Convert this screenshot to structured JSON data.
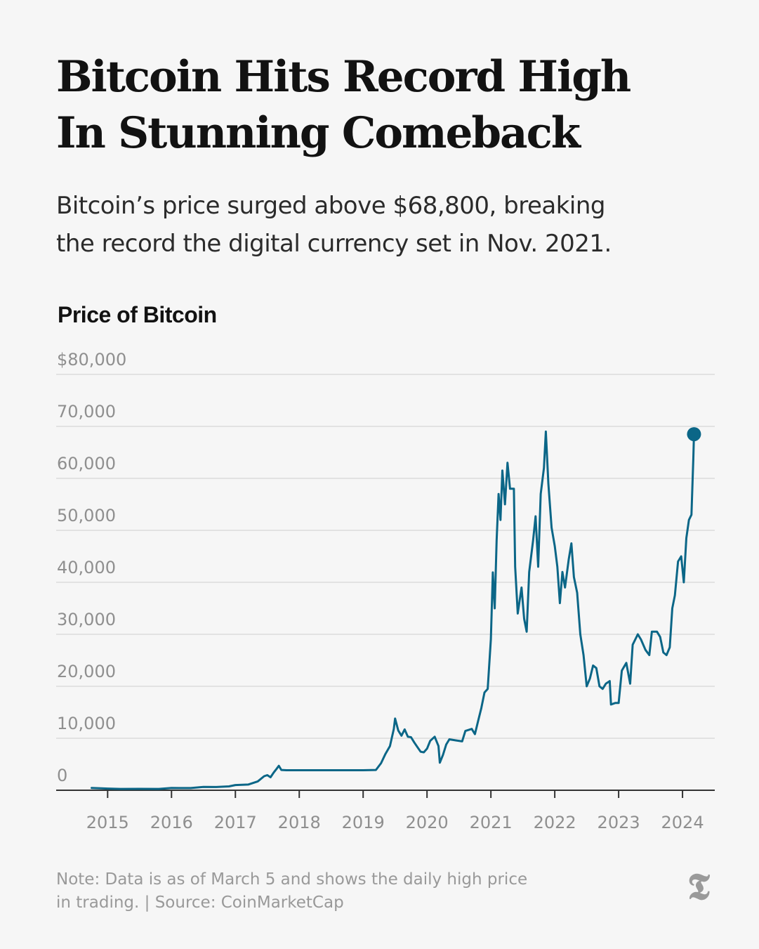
{
  "header": {
    "headline_line1": "Bitcoin Hits Record High",
    "headline_line2": "In Stunning Comeback",
    "dek_line1": "Bitcoin’s price surged above $68,800, breaking",
    "dek_line2": "the record the digital currency set in Nov. 2021."
  },
  "footer": {
    "note_line1": "Note: Data is as of March 5 and shows the daily high price",
    "note_line2": "in trading. | Source: CoinMarketCap",
    "logo": "𝕿"
  },
  "colors": {
    "line": "#0b6687",
    "grid": "#dcdcdc",
    "axis": "#333333",
    "tick_text": "#8f8f8f",
    "background": "#f6f6f6"
  },
  "chart_data": {
    "type": "line",
    "title": "Price of Bitcoin",
    "y_tick_labels": [
      "0",
      "10,000",
      "20,000",
      "30,000",
      "40,000",
      "50,000",
      "60,000",
      "70,000",
      "$80,000"
    ],
    "y_ticks": [
      0,
      10000,
      20000,
      30000,
      40000,
      50000,
      60000,
      70000,
      80000
    ],
    "ylim": [
      0,
      80000
    ],
    "x_tick_labels": [
      "2015",
      "2016",
      "2017",
      "2018",
      "2019",
      "2020",
      "2021",
      "2022",
      "2023",
      "2024"
    ],
    "x_ticks": [
      2015,
      2016,
      2017,
      2018,
      2019,
      2020,
      2021,
      2022,
      2023,
      2024
    ],
    "xlim": [
      2014.7,
      2024.34
    ],
    "grid": "horizontal",
    "series": [
      {
        "color": "#0b6687",
        "end_marker": true,
        "points": [
          [
            2014.75,
            450
          ],
          [
            2014.9,
            380
          ],
          [
            2015.0,
            320
          ],
          [
            2015.2,
            260
          ],
          [
            2015.5,
            270
          ],
          [
            2015.8,
            250
          ],
          [
            2016.0,
            430
          ],
          [
            2016.3,
            420
          ],
          [
            2016.5,
            650
          ],
          [
            2016.7,
            620
          ],
          [
            2016.9,
            740
          ],
          [
            2017.0,
            1000
          ],
          [
            2017.2,
            1100
          ],
          [
            2017.35,
            1700
          ],
          [
            2017.45,
            2700
          ],
          [
            2017.5,
            2900
          ],
          [
            2017.55,
            2500
          ],
          [
            2017.6,
            3400
          ],
          [
            2017.65,
            4200
          ],
          [
            2017.68,
            4700
          ],
          [
            2017.72,
            3900
          ],
          [
            2017.8,
            3850
          ],
          [
            2018.0,
            3850
          ],
          [
            2018.5,
            3850
          ],
          [
            2019.0,
            3850
          ],
          [
            2019.2,
            3900
          ],
          [
            2019.28,
            5200
          ],
          [
            2019.35,
            7000
          ],
          [
            2019.42,
            8500
          ],
          [
            2019.48,
            11800
          ],
          [
            2019.5,
            13800
          ],
          [
            2019.55,
            11500
          ],
          [
            2019.6,
            10500
          ],
          [
            2019.65,
            11700
          ],
          [
            2019.7,
            10300
          ],
          [
            2019.75,
            10200
          ],
          [
            2019.8,
            9200
          ],
          [
            2019.85,
            8300
          ],
          [
            2019.9,
            7400
          ],
          [
            2019.95,
            7300
          ],
          [
            2020.0,
            8000
          ],
          [
            2020.05,
            9500
          ],
          [
            2020.12,
            10300
          ],
          [
            2020.18,
            8500
          ],
          [
            2020.2,
            5300
          ],
          [
            2020.25,
            6800
          ],
          [
            2020.3,
            8800
          ],
          [
            2020.35,
            9800
          ],
          [
            2020.45,
            9600
          ],
          [
            2020.55,
            9400
          ],
          [
            2020.6,
            11400
          ],
          [
            2020.7,
            11800
          ],
          [
            2020.75,
            10800
          ],
          [
            2020.8,
            13300
          ],
          [
            2020.85,
            15800
          ],
          [
            2020.9,
            18800
          ],
          [
            2020.95,
            19500
          ],
          [
            2021.0,
            29000
          ],
          [
            2021.03,
            41900
          ],
          [
            2021.06,
            35000
          ],
          [
            2021.09,
            48000
          ],
          [
            2021.12,
            57000
          ],
          [
            2021.15,
            52000
          ],
          [
            2021.18,
            61500
          ],
          [
            2021.22,
            55000
          ],
          [
            2021.26,
            63000
          ],
          [
            2021.3,
            58000
          ],
          [
            2021.36,
            58000
          ],
          [
            2021.38,
            43000
          ],
          [
            2021.42,
            34000
          ],
          [
            2021.48,
            39000
          ],
          [
            2021.52,
            33000
          ],
          [
            2021.56,
            30500
          ],
          [
            2021.6,
            42000
          ],
          [
            2021.66,
            48000
          ],
          [
            2021.7,
            52700
          ],
          [
            2021.74,
            43000
          ],
          [
            2021.78,
            57000
          ],
          [
            2021.83,
            62000
          ],
          [
            2021.86,
            69000
          ],
          [
            2021.9,
            59000
          ],
          [
            2021.95,
            50500
          ],
          [
            2022.0,
            47000
          ],
          [
            2022.04,
            43000
          ],
          [
            2022.08,
            36000
          ],
          [
            2022.12,
            42000
          ],
          [
            2022.16,
            39000
          ],
          [
            2022.22,
            44500
          ],
          [
            2022.26,
            47500
          ],
          [
            2022.3,
            41000
          ],
          [
            2022.35,
            38000
          ],
          [
            2022.4,
            30000
          ],
          [
            2022.45,
            26000
          ],
          [
            2022.5,
            20000
          ],
          [
            2022.55,
            21500
          ],
          [
            2022.6,
            24000
          ],
          [
            2022.65,
            23500
          ],
          [
            2022.7,
            20000
          ],
          [
            2022.75,
            19500
          ],
          [
            2022.8,
            20500
          ],
          [
            2022.86,
            21000
          ],
          [
            2022.88,
            16500
          ],
          [
            2022.95,
            16800
          ],
          [
            2023.0,
            16800
          ],
          [
            2023.05,
            23000
          ],
          [
            2023.12,
            24500
          ],
          [
            2023.18,
            20500
          ],
          [
            2023.22,
            28000
          ],
          [
            2023.3,
            30000
          ],
          [
            2023.35,
            29000
          ],
          [
            2023.42,
            27000
          ],
          [
            2023.48,
            26000
          ],
          [
            2023.52,
            30500
          ],
          [
            2023.6,
            30500
          ],
          [
            2023.65,
            29500
          ],
          [
            2023.7,
            26500
          ],
          [
            2023.75,
            26000
          ],
          [
            2023.8,
            27500
          ],
          [
            2023.84,
            35000
          ],
          [
            2023.88,
            37500
          ],
          [
            2023.93,
            44000
          ],
          [
            2023.98,
            45000
          ],
          [
            2024.02,
            40000
          ],
          [
            2024.06,
            48500
          ],
          [
            2024.1,
            52000
          ],
          [
            2024.14,
            53000
          ],
          [
            2024.17,
            64000
          ],
          [
            2024.18,
            68500
          ]
        ]
      }
    ]
  }
}
